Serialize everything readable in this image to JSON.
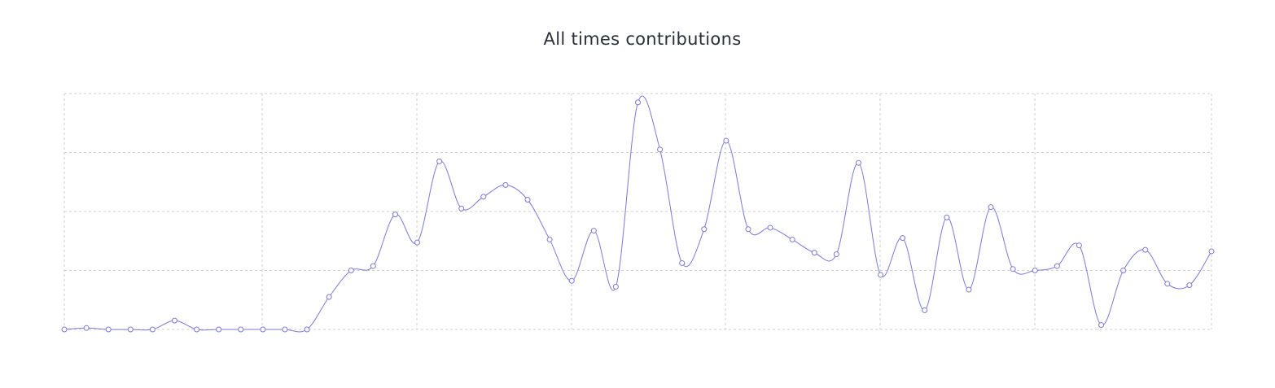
{
  "chart_data": {
    "type": "line",
    "title": "All times contributions",
    "xlabel": "",
    "ylabel": "",
    "ylim": [
      0,
      80
    ],
    "grid": true,
    "line_color": "#7b78d6",
    "point_color": "#7b78d6",
    "grid_color": "#cfcfcf",
    "x": [
      0,
      1,
      2,
      3,
      4,
      5,
      6,
      7,
      8,
      9,
      10,
      11,
      12,
      13,
      14,
      15,
      16,
      17,
      18,
      19,
      20,
      21,
      22,
      23,
      24,
      25,
      26,
      27,
      28,
      29,
      30,
      31,
      32,
      33,
      34,
      35,
      36,
      37,
      38,
      39,
      40,
      41,
      42,
      43,
      44,
      45,
      46,
      47,
      48,
      49,
      50,
      51,
      52
    ],
    "values": [
      0,
      0.5,
      0,
      0,
      0,
      3,
      0,
      0,
      0,
      0,
      0,
      0,
      11,
      20,
      21.5,
      39,
      29.5,
      57,
      41,
      45,
      49,
      44,
      30.5,
      16.5,
      33.5,
      14.5,
      77,
      61,
      22.5,
      34,
      64,
      34,
      34.5,
      30.5,
      26,
      25.5,
      56.5,
      18.5,
      31,
      6.5,
      38,
      13.5,
      41.5,
      20.5,
      20,
      21.5,
      28.5,
      1.5,
      20,
      27,
      15.5,
      15,
      26.5
    ]
  }
}
